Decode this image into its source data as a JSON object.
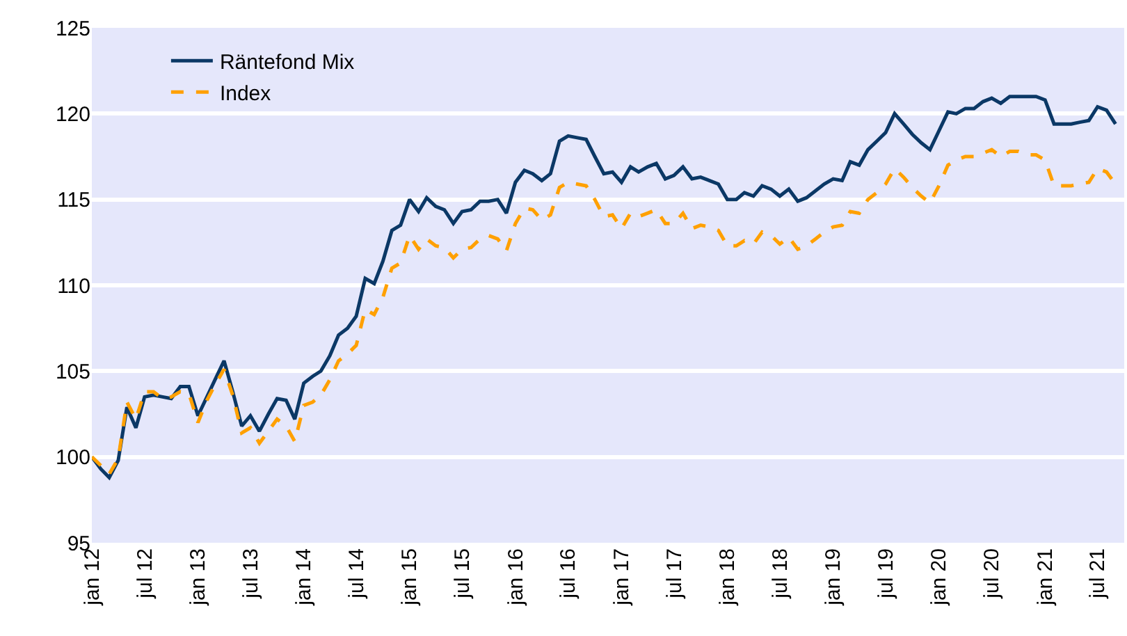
{
  "chart_data": {
    "type": "line",
    "x": [
      "2012-01",
      "2012-02",
      "2012-03",
      "2012-04",
      "2012-05",
      "2012-06",
      "2012-07",
      "2012-08",
      "2012-09",
      "2012-10",
      "2012-11",
      "2012-12",
      "2013-01",
      "2013-02",
      "2013-03",
      "2013-04",
      "2013-05",
      "2013-06",
      "2013-07",
      "2013-08",
      "2013-09",
      "2013-10",
      "2013-11",
      "2013-12",
      "2014-01",
      "2014-02",
      "2014-03",
      "2014-04",
      "2014-05",
      "2014-06",
      "2014-07",
      "2014-08",
      "2014-09",
      "2014-10",
      "2014-11",
      "2014-12",
      "2015-01",
      "2015-02",
      "2015-03",
      "2015-04",
      "2015-05",
      "2015-06",
      "2015-07",
      "2015-08",
      "2015-09",
      "2015-10",
      "2015-11",
      "2015-12",
      "2016-01",
      "2016-02",
      "2016-03",
      "2016-04",
      "2016-05",
      "2016-06",
      "2016-07",
      "2016-08",
      "2016-09",
      "2016-10",
      "2016-11",
      "2016-12",
      "2017-01",
      "2017-02",
      "2017-03",
      "2017-04",
      "2017-05",
      "2017-06",
      "2017-07",
      "2017-08",
      "2017-09",
      "2017-10",
      "2017-11",
      "2017-12",
      "2018-01",
      "2018-02",
      "2018-03",
      "2018-04",
      "2018-05",
      "2018-06",
      "2018-07",
      "2018-08",
      "2018-09",
      "2018-10",
      "2018-11",
      "2018-12",
      "2019-01",
      "2019-02",
      "2019-03",
      "2019-04",
      "2019-05",
      "2019-06",
      "2019-07",
      "2019-08",
      "2019-09",
      "2019-10",
      "2019-11",
      "2019-12",
      "2020-01",
      "2020-02",
      "2020-03",
      "2020-04",
      "2020-05",
      "2020-06",
      "2020-07",
      "2020-08",
      "2020-09",
      "2020-10",
      "2020-11",
      "2020-12",
      "2021-01",
      "2021-02",
      "2021-03",
      "2021-04",
      "2021-05",
      "2021-06",
      "2021-07",
      "2021-08",
      "2021-09"
    ],
    "series": [
      {
        "name": "Räntefond Mix",
        "color": "#0b3866",
        "line_style": "solid",
        "values": [
          100.0,
          99.3,
          98.8,
          99.8,
          102.9,
          101.7,
          103.5,
          103.6,
          103.5,
          103.4,
          104.1,
          104.1,
          102.4,
          103.5,
          104.5,
          105.6,
          103.8,
          101.8,
          102.4,
          101.5,
          102.5,
          103.4,
          103.3,
          102.2,
          104.3,
          104.7,
          105.0,
          105.9,
          107.1,
          107.5,
          108.2,
          110.4,
          110.1,
          111.4,
          113.2,
          113.5,
          115.0,
          114.3,
          115.1,
          114.6,
          114.4,
          113.6,
          114.3,
          114.4,
          114.9,
          114.9,
          115.0,
          114.2,
          116.0,
          116.7,
          116.5,
          116.1,
          116.5,
          118.4,
          118.7,
          118.6,
          118.5,
          117.5,
          116.5,
          116.6,
          116.0,
          116.9,
          116.6,
          116.9,
          117.1,
          116.2,
          116.4,
          116.9,
          116.2,
          116.3,
          116.1,
          115.9,
          115.0,
          115.0,
          115.4,
          115.2,
          115.8,
          115.6,
          115.2,
          115.6,
          114.9,
          115.1,
          115.5,
          115.9,
          116.2,
          116.1,
          117.2,
          117.0,
          117.9,
          118.4,
          118.9,
          120.0,
          119.4,
          118.8,
          118.3,
          117.9,
          119.0,
          120.1,
          120.0,
          120.3,
          120.3,
          120.7,
          120.9,
          120.6,
          121.0,
          121.0,
          121.0,
          121.0,
          120.8,
          119.4,
          119.4,
          119.4,
          119.5,
          119.6,
          120.4,
          120.2,
          119.4
        ]
      },
      {
        "name": "Index",
        "color": "#ffa000",
        "line_style": "dashed",
        "values": [
          100.0,
          99.5,
          99.0,
          99.9,
          103.2,
          102.2,
          103.8,
          103.8,
          103.4,
          103.5,
          103.8,
          103.7,
          102.0,
          103.3,
          104.2,
          105.1,
          103.6,
          101.4,
          101.7,
          100.8,
          101.5,
          102.2,
          101.8,
          100.9,
          103.0,
          103.2,
          103.6,
          104.5,
          105.6,
          106.0,
          106.5,
          108.6,
          108.3,
          109.3,
          111.0,
          111.3,
          112.9,
          112.1,
          112.7,
          112.3,
          112.2,
          111.6,
          112.1,
          112.2,
          112.7,
          112.9,
          112.7,
          112.0,
          113.6,
          114.5,
          114.4,
          113.8,
          114.1,
          115.7,
          116.0,
          115.9,
          115.8,
          115.0,
          114.0,
          114.1,
          113.3,
          114.2,
          114.0,
          114.2,
          114.4,
          113.6,
          113.6,
          114.2,
          113.3,
          113.5,
          113.4,
          113.2,
          112.3,
          112.3,
          112.6,
          112.4,
          113.1,
          112.9,
          112.4,
          112.8,
          112.1,
          112.3,
          112.7,
          113.1,
          113.4,
          113.5,
          114.3,
          114.2,
          115.0,
          115.4,
          115.9,
          116.8,
          116.3,
          115.7,
          115.2,
          114.8,
          115.8,
          117.0,
          117.3,
          117.5,
          117.5,
          117.7,
          117.9,
          117.5,
          117.8,
          117.8,
          117.6,
          117.6,
          117.3,
          115.8,
          115.8,
          115.8,
          115.9,
          116.0,
          116.8,
          116.6,
          115.9
        ]
      }
    ],
    "xlim": [
      "2012-01",
      "2021-10"
    ],
    "xticks": [
      {
        "value": "2012-01",
        "label": "jan 12"
      },
      {
        "value": "2012-07",
        "label": "jul 12"
      },
      {
        "value": "2013-01",
        "label": "jan 13"
      },
      {
        "value": "2013-07",
        "label": "jul 13"
      },
      {
        "value": "2014-01",
        "label": "jan 14"
      },
      {
        "value": "2014-07",
        "label": "jul 14"
      },
      {
        "value": "2015-01",
        "label": "jan 15"
      },
      {
        "value": "2015-07",
        "label": "jul 15"
      },
      {
        "value": "2016-01",
        "label": "jan 16"
      },
      {
        "value": "2016-07",
        "label": "jul 16"
      },
      {
        "value": "2017-01",
        "label": "jan 17"
      },
      {
        "value": "2017-07",
        "label": "jul 17"
      },
      {
        "value": "2018-01",
        "label": "jan 18"
      },
      {
        "value": "2018-07",
        "label": "jul 18"
      },
      {
        "value": "2019-01",
        "label": "jan 19"
      },
      {
        "value": "2019-07",
        "label": "jul 19"
      },
      {
        "value": "2020-01",
        "label": "jan 20"
      },
      {
        "value": "2020-07",
        "label": "jul 20"
      },
      {
        "value": "2021-01",
        "label": "jan 21"
      },
      {
        "value": "2021-07",
        "label": "jul 21"
      }
    ],
    "ylim": [
      95,
      125
    ],
    "yticks": [
      95,
      100,
      105,
      110,
      115,
      120,
      125
    ],
    "grid": "y",
    "legend": "top left",
    "marker": "none"
  }
}
